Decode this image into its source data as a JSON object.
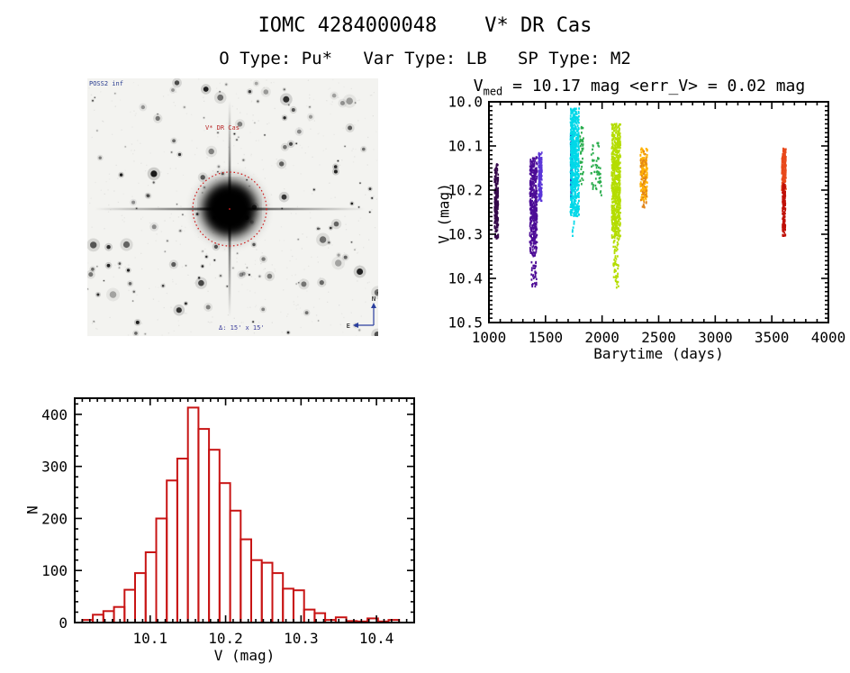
{
  "page": {
    "title": "IOMC 4284000048    V* DR Cas",
    "subtitle": "O Type: Pu*   Var Type: LB   SP Type: M2",
    "target": {
      "iomc_id": "4284000048",
      "name": "V* DR Cas",
      "o_type": "Pu*",
      "var_type": "LB",
      "sp_type": "M2"
    }
  },
  "finder_chart": {
    "survey_label": "POSS2 inf",
    "target_label": "V* DR Cas",
    "bottom_label": "Δ: 15' x 15'",
    "compass": {
      "north": "N",
      "east": "E"
    },
    "aperture_color": "#cf2020",
    "label_color": "#283c8f"
  },
  "chart_data": [
    {
      "id": "lightcurve",
      "type": "scatter",
      "title_parts": {
        "var": "V",
        "sub": "med",
        "rest": " = 10.17 mag <err_V> = 0.02 mag"
      },
      "stats": {
        "v_med_mag": 10.17,
        "mean_err_v_mag": 0.02
      },
      "xlabel": "Barytime (days)",
      "ylabel": "V (mag)",
      "xlim": [
        1000,
        4000
      ],
      "ylim": [
        10.0,
        10.5
      ],
      "y_axis_inverted_magnitudes": true,
      "xticks": [
        "1000",
        "1500",
        "2000",
        "2500",
        "3000",
        "3500",
        "4000"
      ],
      "yticks": [
        "10.0",
        "10.1",
        "10.2",
        "10.3",
        "10.4",
        "10.5"
      ],
      "x_minor_step": 100,
      "y_minor_step": 0.01,
      "grid": false,
      "legend": false,
      "clusters": [
        {
          "name": "epoch-1",
          "days": [
            1050,
            1082
          ],
          "v": [
            10.14,
            10.31
          ],
          "color": "#35084a",
          "n": 220
        },
        {
          "name": "epoch-2",
          "days": [
            1362,
            1425
          ],
          "v": [
            10.125,
            10.35
          ],
          "color": "#4d0c96",
          "n": 420
        },
        {
          "name": "epoch-2-faint-tail",
          "days": [
            1375,
            1420
          ],
          "v": [
            10.36,
            10.42
          ],
          "color": "#4d0c96",
          "n": 32
        },
        {
          "name": "epoch-3",
          "days": [
            1438,
            1468
          ],
          "v": [
            10.115,
            10.225
          ],
          "color": "#5a35d8",
          "n": 160
        },
        {
          "name": "epoch-4",
          "days": [
            1722,
            1735
          ],
          "v": [
            10.07,
            10.22
          ],
          "color": "#1d3fc4",
          "n": 110
        },
        {
          "name": "epoch-5",
          "days": [
            1720,
            1797
          ],
          "v": [
            10.015,
            10.26
          ],
          "color": "#00d8e8",
          "n": 600
        },
        {
          "name": "epoch-5-outliers",
          "days": [
            1735,
            1765
          ],
          "v": [
            10.27,
            10.305
          ],
          "color": "#00d8e8",
          "n": 6
        },
        {
          "name": "epoch-6",
          "days": [
            1805,
            1835
          ],
          "v": [
            10.055,
            10.195
          ],
          "color": "#2aad4d",
          "n": 40
        },
        {
          "name": "epoch-7",
          "days": [
            1900,
            1995
          ],
          "v": [
            10.09,
            10.215
          ],
          "color": "#2aad4d",
          "n": 55
        },
        {
          "name": "epoch-8",
          "days": [
            2085,
            2162
          ],
          "v": [
            10.05,
            10.31
          ],
          "color": "#b4dd00",
          "n": 620
        },
        {
          "name": "epoch-8-faint-tail",
          "days": [
            2100,
            2145
          ],
          "v": [
            10.31,
            10.425
          ],
          "color": "#b4dd00",
          "n": 55
        },
        {
          "name": "epoch-9",
          "days": [
            2338,
            2400
          ],
          "v": [
            10.105,
            10.225
          ],
          "color": "#ffb000",
          "n": 170
        },
        {
          "name": "epoch-9-flecks",
          "days": [
            2340,
            2395
          ],
          "v": [
            10.11,
            10.24
          ],
          "color": "#e2851a",
          "n": 45
        },
        {
          "name": "epoch-10-upper",
          "days": [
            3588,
            3626
          ],
          "v": [
            10.105,
            10.2
          ],
          "color": "#e8481a",
          "n": 170
        },
        {
          "name": "epoch-10-lower",
          "days": [
            3594,
            3620
          ],
          "v": [
            10.185,
            10.305
          ],
          "color": "#c01008",
          "n": 150
        }
      ]
    },
    {
      "id": "histogram",
      "type": "bar",
      "xlabel": "V (mag)",
      "ylabel": "N",
      "xlim": [
        10.0,
        10.45
      ],
      "ylim": [
        0,
        431
      ],
      "xticks": [
        "10.1",
        "10.2",
        "10.3",
        "10.4"
      ],
      "yticks": [
        "0",
        "100",
        "200",
        "300",
        "400"
      ],
      "x_minor_step": 0.01,
      "y_minor_step": 20,
      "bin_start": 10.01,
      "bin_width": 0.014,
      "values": [
        5,
        15,
        22,
        30,
        63,
        95,
        135,
        200,
        273,
        315,
        413,
        372,
        332,
        268,
        215,
        160,
        120,
        115,
        95,
        65,
        62,
        25,
        18,
        5,
        10,
        3,
        2,
        8,
        2,
        5
      ],
      "color": "#c81414",
      "grid": false,
      "legend": false
    }
  ]
}
